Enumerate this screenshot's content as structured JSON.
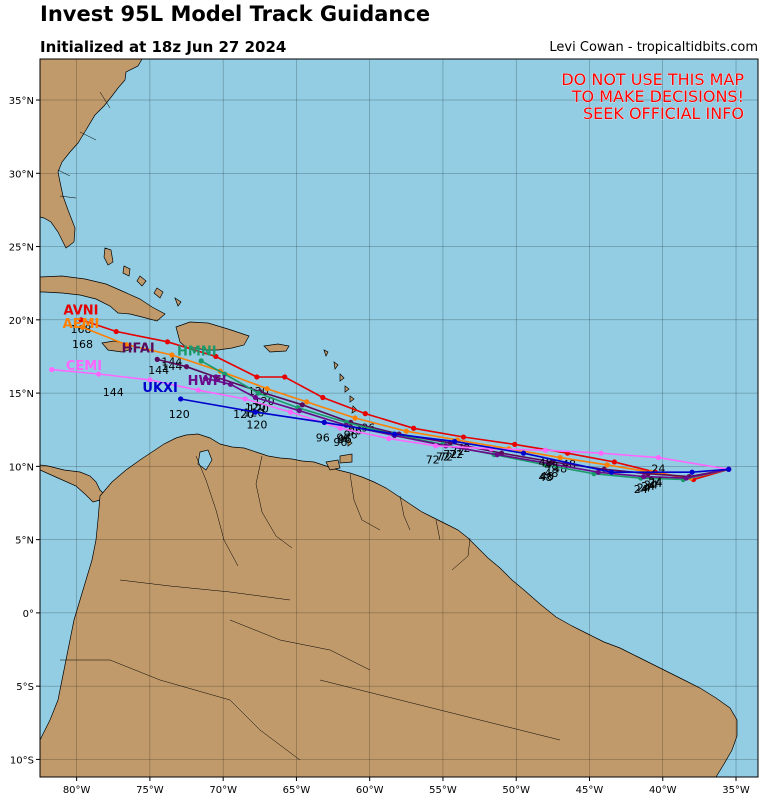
{
  "header": {
    "title": "Invest 95L Model Track Guidance",
    "subtitle": "Initialized at 18z Jun 27 2024",
    "credit": "Levi Cowan - tropicaltidbits.com"
  },
  "warning": [
    "DO NOT USE THIS MAP",
    "TO MAKE DECISIONS!",
    "SEEK OFFICIAL INFO"
  ],
  "axes": {
    "lon_range": [
      -82.5,
      -33.5
    ],
    "lat_range": [
      -11.2,
      37.8
    ],
    "lon_ticks": [
      {
        "v": -80,
        "label": "80°W"
      },
      {
        "v": -75,
        "label": "75°W"
      },
      {
        "v": -70,
        "label": "70°W"
      },
      {
        "v": -65,
        "label": "65°W"
      },
      {
        "v": -60,
        "label": "60°W"
      },
      {
        "v": -55,
        "label": "55°W"
      },
      {
        "v": -50,
        "label": "50°W"
      },
      {
        "v": -45,
        "label": "45°W"
      },
      {
        "v": -40,
        "label": "40°W"
      },
      {
        "v": -35,
        "label": "35°W"
      }
    ],
    "lat_ticks": [
      {
        "v": 35,
        "label": "35°N"
      },
      {
        "v": 30,
        "label": "30°N"
      },
      {
        "v": 25,
        "label": "25°N"
      },
      {
        "v": 20,
        "label": "20°N"
      },
      {
        "v": 15,
        "label": "15°N"
      },
      {
        "v": 10,
        "label": "10°N"
      },
      {
        "v": 5,
        "label": "5°N"
      },
      {
        "v": 0,
        "label": "0°"
      },
      {
        "v": -5,
        "label": "5°S"
      },
      {
        "v": -10,
        "label": "10°S"
      }
    ],
    "grid": true
  },
  "colors": {
    "ocean": "#92cde3",
    "land": "#c19a6b",
    "border": "#000000"
  },
  "chart_data": {
    "type": "map-tracks",
    "models": [
      {
        "name": "AVNI",
        "color": "#e60000",
        "points": [
          [
            -35.5,
            9.8
          ],
          [
            -37.9,
            9.1
          ],
          [
            -40.5,
            9.6
          ],
          [
            -43.3,
            10.3
          ],
          [
            -46.5,
            10.9
          ],
          [
            -50.1,
            11.5
          ],
          [
            -53.6,
            12.0
          ],
          [
            -57.0,
            12.6
          ],
          [
            -60.3,
            13.6
          ],
          [
            -63.2,
            14.7
          ],
          [
            -65.8,
            16.1
          ],
          [
            -67.7,
            16.1
          ],
          [
            -70.5,
            17.5
          ],
          [
            -73.8,
            18.5
          ],
          [
            -77.3,
            19.2
          ],
          [
            -79.7,
            20.0
          ]
        ],
        "labels": [
          {
            "t": "24",
            "lon": -40.5,
            "lat": 9.2
          },
          {
            "t": "48",
            "lon": -46.4,
            "lat": 10.5
          },
          {
            "t": "72",
            "lon": -53.6,
            "lat": 11.6
          },
          {
            "t": "96",
            "lon": -60.1,
            "lat": 13.0
          },
          {
            "t": "120",
            "lon": -67.6,
            "lat": 15.5
          },
          {
            "t": "144",
            "lon": -73.5,
            "lat": 17.5
          },
          {
            "t": "168",
            "lon": -79.7,
            "lat": 19.7
          }
        ],
        "name_pos": {
          "lon": -79.7,
          "lat": 20.7
        }
      },
      {
        "name": "AEMI",
        "color": "#ff7f00",
        "points": [
          [
            -35.5,
            9.8
          ],
          [
            -38.1,
            9.2
          ],
          [
            -40.8,
            9.6
          ],
          [
            -43.8,
            10.1
          ],
          [
            -47.0,
            10.6
          ],
          [
            -50.5,
            11.2
          ],
          [
            -54.0,
            11.8
          ],
          [
            -57.5,
            12.4
          ],
          [
            -61.0,
            13.3
          ],
          [
            -64.3,
            14.4
          ],
          [
            -67.0,
            15.3
          ],
          [
            -70.2,
            16.5
          ],
          [
            -73.5,
            17.6
          ],
          [
            -76.6,
            18.3
          ],
          [
            -79.6,
            19.5
          ]
        ],
        "labels": [
          {
            "t": "24",
            "lon": -40.8,
            "lat": 9.1
          },
          {
            "t": "48",
            "lon": -47.0,
            "lat": 10.2
          },
          {
            "t": "72",
            "lon": -54.0,
            "lat": 11.4
          },
          {
            "t": "96",
            "lon": -61.0,
            "lat": 12.8
          },
          {
            "t": "120",
            "lon": -67.2,
            "lat": 14.8
          },
          {
            "t": "144",
            "lon": -73.5,
            "lat": 17.2
          },
          {
            "t": "168",
            "lon": -79.6,
            "lat": 18.7
          }
        ],
        "name_pos": {
          "lon": -79.7,
          "lat": 19.8
        }
      },
      {
        "name": "HFAI",
        "color": "#5a0a5a",
        "points": [
          [
            -35.5,
            9.8
          ],
          [
            -38.2,
            9.3
          ],
          [
            -41.0,
            9.5
          ],
          [
            -44.0,
            9.8
          ],
          [
            -47.5,
            10.3
          ],
          [
            -51.0,
            10.9
          ],
          [
            -54.5,
            11.6
          ],
          [
            -58.0,
            12.2
          ],
          [
            -61.3,
            13.0
          ],
          [
            -64.6,
            14.2
          ],
          [
            -67.5,
            15.1
          ],
          [
            -70.5,
            16.1
          ],
          [
            -72.5,
            16.8
          ],
          [
            -74.5,
            17.3
          ]
        ],
        "labels": [
          {
            "t": "24",
            "lon": -41.0,
            "lat": 9.0
          },
          {
            "t": "48",
            "lon": -47.6,
            "lat": 9.9
          },
          {
            "t": "72",
            "lon": -54.5,
            "lat": 11.2
          },
          {
            "t": "96",
            "lon": -61.3,
            "lat": 12.5
          },
          {
            "t": "120",
            "lon": -67.8,
            "lat": 14.4
          },
          {
            "t": "144",
            "lon": -74.4,
            "lat": 16.9
          }
        ],
        "name_pos": {
          "lon": -75.8,
          "lat": 18.1
        }
      },
      {
        "name": "HMNI",
        "color": "#1a9a6a",
        "points": [
          [
            -35.5,
            9.8
          ],
          [
            -38.6,
            9.1
          ],
          [
            -41.5,
            9.2
          ],
          [
            -44.7,
            9.5
          ],
          [
            -48.0,
            10.1
          ],
          [
            -51.5,
            10.8
          ],
          [
            -55.0,
            11.5
          ],
          [
            -58.4,
            12.2
          ],
          [
            -61.6,
            13.0
          ],
          [
            -64.9,
            14.0
          ],
          [
            -67.6,
            15.0
          ],
          [
            -69.9,
            16.3
          ],
          [
            -71.5,
            17.2
          ]
        ],
        "labels": [
          {
            "t": "24",
            "lon": -41.5,
            "lat": 8.8
          },
          {
            "t": "48",
            "lon": -48.0,
            "lat": 9.6
          },
          {
            "t": "72",
            "lon": -55.0,
            "lat": 11.0
          },
          {
            "t": "96",
            "lon": -61.8,
            "lat": 12.3
          },
          {
            "t": "120",
            "lon": -67.6,
            "lat": 14.3
          }
        ],
        "name_pos": {
          "lon": -71.8,
          "lat": 17.9
        }
      },
      {
        "name": "HWFI",
        "color": "#6a0a8a",
        "points": [
          [
            -35.5,
            9.8
          ],
          [
            -38.4,
            9.2
          ],
          [
            -41.3,
            9.3
          ],
          [
            -44.4,
            9.6
          ],
          [
            -47.8,
            10.2
          ],
          [
            -51.3,
            10.8
          ],
          [
            -54.8,
            11.4
          ],
          [
            -58.3,
            12.1
          ],
          [
            -61.6,
            12.8
          ],
          [
            -64.8,
            13.8
          ],
          [
            -67.8,
            14.7
          ],
          [
            -69.5,
            15.6
          ],
          [
            -71.2,
            16.0
          ]
        ],
        "labels": [
          {
            "t": "24",
            "lon": -41.3,
            "lat": 8.9
          },
          {
            "t": "48",
            "lon": -47.9,
            "lat": 9.7
          },
          {
            "t": "72",
            "lon": -54.8,
            "lat": 11.0
          },
          {
            "t": "96",
            "lon": -61.7,
            "lat": 12.2
          },
          {
            "t": "120",
            "lon": -67.9,
            "lat": 14.0
          }
        ],
        "name_pos": {
          "lon": -71.1,
          "lat": 15.9
        }
      },
      {
        "name": "CEMI",
        "color": "#ff66ff",
        "points": [
          [
            -35.5,
            9.8
          ],
          [
            -40.3,
            10.6
          ],
          [
            -44.2,
            10.9
          ],
          [
            -48.0,
            11.1
          ],
          [
            -51.7,
            11.2
          ],
          [
            -55.5,
            11.4
          ],
          [
            -58.7,
            11.9
          ],
          [
            -62.0,
            12.6
          ],
          [
            -65.4,
            13.7
          ],
          [
            -68.5,
            14.6
          ],
          [
            -71.7,
            15.2
          ],
          [
            -75.0,
            15.9
          ],
          [
            -78.5,
            16.3
          ],
          [
            -81.7,
            16.6
          ]
        ],
        "labels": [
          {
            "t": "24",
            "lon": -40.3,
            "lat": 10.2
          },
          {
            "t": "48",
            "lon": -48.0,
            "lat": 10.6
          },
          {
            "t": "72",
            "lon": -55.7,
            "lat": 10.8
          },
          {
            "t": "96",
            "lon": -62.0,
            "lat": 12.0
          },
          {
            "t": "120",
            "lon": -68.6,
            "lat": 13.9
          },
          {
            "t": "144",
            "lon": -77.5,
            "lat": 15.4
          }
        ],
        "name_pos": {
          "lon": -79.5,
          "lat": 16.9
        }
      },
      {
        "name": "UKXI",
        "color": "#0000cc",
        "points": [
          [
            -35.5,
            9.8
          ],
          [
            -38.0,
            9.6
          ],
          [
            -43.5,
            9.6
          ],
          [
            -49.5,
            10.9
          ],
          [
            -54.2,
            11.7
          ],
          [
            -58.3,
            12.2
          ],
          [
            -63.1,
            13.0
          ],
          [
            -67.8,
            13.7
          ],
          [
            -72.9,
            14.6
          ]
        ],
        "labels": [
          {
            "t": "24",
            "lon": -40.5,
            "lat": 9.3
          },
          {
            "t": "48",
            "lon": -47.6,
            "lat": 10.4
          },
          {
            "t": "72",
            "lon": -54.1,
            "lat": 11.2
          },
          {
            "t": "96",
            "lon": -63.2,
            "lat": 12.3
          },
          {
            "t": "120",
            "lon": -67.7,
            "lat": 13.2
          },
          {
            "t": "120",
            "lon": -73.0,
            "lat": 13.9
          }
        ],
        "name_pos": {
          "lon": -74.3,
          "lat": 15.4
        }
      }
    ]
  }
}
